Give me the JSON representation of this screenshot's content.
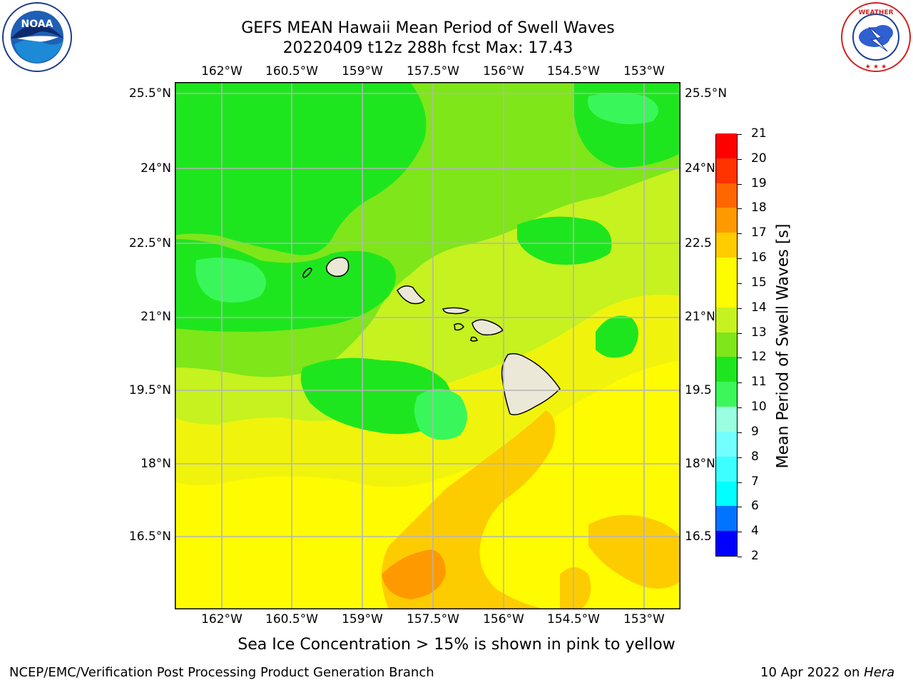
{
  "header": {
    "title_line1": "GEFS MEAN Hawaii Mean Period of Swell Waves",
    "title_line2": "20220409 t12z 288h fcst   Max: 17.43"
  },
  "logos": {
    "left": "NOAA",
    "left_ring": "NATIONAL OCEANIC AND ATMOSPHERIC ADMINISTRATION · U.S. DEPARTMENT OF COMMERCE",
    "right_ring": "NATIONAL WEATHER SERVICE"
  },
  "map": {
    "lon_labels": [
      "162°W",
      "160.5°W",
      "159°W",
      "157.5°W",
      "156°W",
      "154.5°W",
      "153°W"
    ],
    "lat_labels_left": [
      "25.5°N",
      "24°N",
      "22.5°N",
      "21°N",
      "19.5°N",
      "18°N",
      "16.5°N"
    ],
    "lat_labels_right": [
      "25.5°N",
      "24°N",
      "22.5",
      "21°N",
      "19.5",
      "18°N",
      "16.5"
    ],
    "field": "mean swell period",
    "field_max": 17.43,
    "colors": {
      "land": "#ece8d8",
      "grid": "#b4b4b4",
      "period_10_11": "#39f75a",
      "period_11_12": "#1ee61e",
      "period_12_13": "#7fe619",
      "period_13_14": "#c6f21f",
      "period_14_15": "#f0f40d",
      "period_15_16": "#fffb00",
      "period_16_17": "#fdcc00",
      "period_17_18": "#ff9900"
    }
  },
  "colorbar": {
    "label": "Mean Period of Swell Waves [s]",
    "ticks": [
      "2",
      "4",
      "6",
      "7",
      "8",
      "9",
      "10",
      "11",
      "12",
      "13",
      "14",
      "15",
      "16",
      "17",
      "18",
      "19",
      "20",
      "21"
    ],
    "colors": [
      "#0000ff",
      "#0073ff",
      "#00ffff",
      "#3dffff",
      "#74ffff",
      "#99ffe0",
      "#3df75a",
      "#1ee61e",
      "#7fe619",
      "#c6f21f",
      "#fffb00",
      "#fffb00",
      "#ffcc00",
      "#ff9900",
      "#ff6600",
      "#ff3300",
      "#ff0000"
    ]
  },
  "footer": {
    "ice_note": "Sea Ice Concentration > 15% is shown in pink to yellow",
    "credit": "NCEP/EMC/Verification Post Processing Product Generation Branch",
    "date_prefix": "10 Apr 2022 on ",
    "machine": "Hera"
  }
}
